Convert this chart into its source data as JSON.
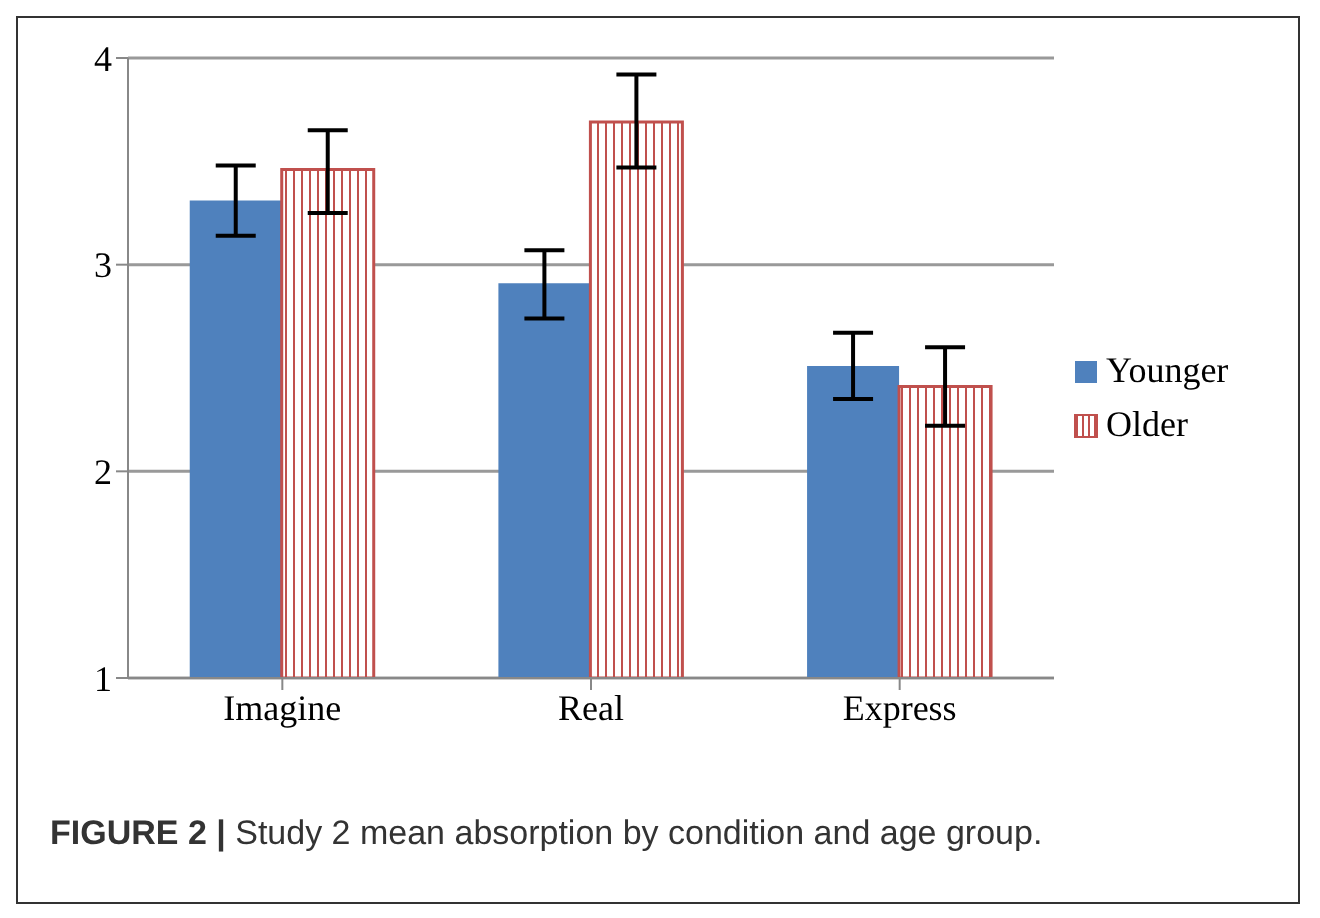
{
  "chart_data": {
    "type": "bar",
    "categories": [
      "Imagine",
      "Real",
      "Express"
    ],
    "series": [
      {
        "name": "Younger",
        "color": "#4f81bd",
        "values": [
          3.31,
          2.91,
          2.51
        ],
        "errors": [
          [
            3.14,
            3.48
          ],
          [
            2.74,
            3.07
          ],
          [
            2.35,
            2.67
          ]
        ]
      },
      {
        "name": "Older",
        "color": "#c0504d",
        "values": [
          3.46,
          3.69,
          2.41
        ],
        "errors": [
          [
            3.25,
            3.65
          ],
          [
            3.47,
            3.92
          ],
          [
            2.22,
            2.6
          ]
        ]
      }
    ],
    "ylim": [
      1,
      4
    ],
    "yticks": [
      1,
      2,
      3,
      4
    ],
    "grid": "y",
    "legend": "right",
    "annotations": [
      "FIGURE 2 | Study 2 mean absorption by condition and age group."
    ]
  }
}
